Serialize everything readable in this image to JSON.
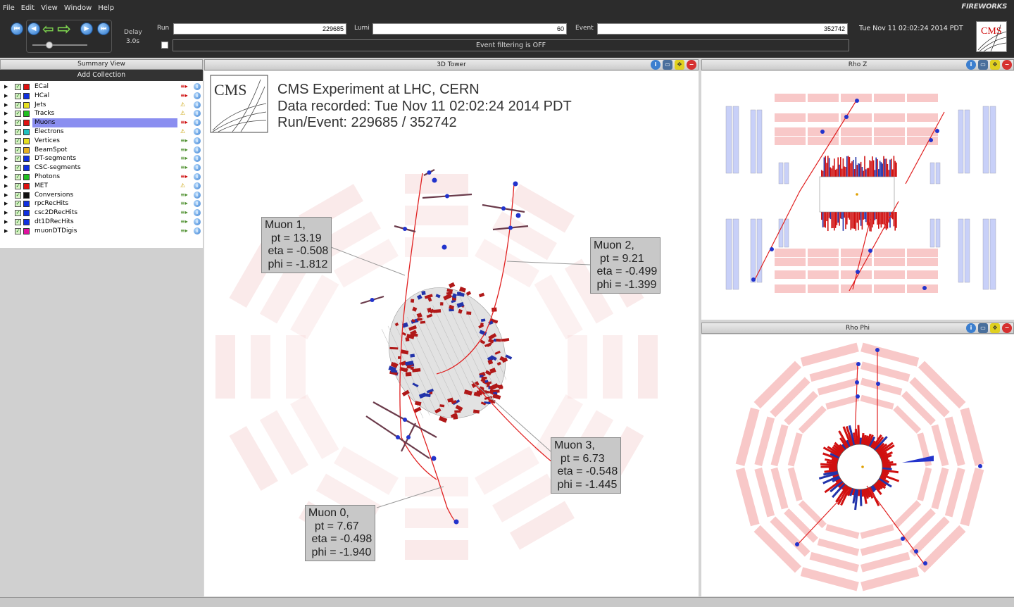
{
  "menu": {
    "file": "File",
    "edit": "Edit",
    "view": "View",
    "window": "Window",
    "help": "Help",
    "brand": "FIREWORKS"
  },
  "toolbar": {
    "delay_label": "Delay",
    "delay_value": "3.0s",
    "run_label": "Run",
    "run_value": "229685",
    "lumi_label": "Lumi",
    "lumi_value": "60",
    "event_label": "Event",
    "event_value": "352742",
    "timestamp": "Tue Nov 11 02:02:24 2014 PDT",
    "filter_status": "Event filtering is OFF",
    "logo_text": "CMS"
  },
  "summary": {
    "title": "Summary View",
    "add_collection": "Add Collection",
    "collections": [
      {
        "name": "ECal",
        "color": "#e01010",
        "status": "≡▸",
        "status_kind": "err"
      },
      {
        "name": "HCal",
        "color": "#1030e0",
        "status": "≡▸",
        "status_kind": "err"
      },
      {
        "name": "Jets",
        "color": "#e6e020",
        "status": "⚠",
        "status_kind": "warn"
      },
      {
        "name": "Tracks",
        "color": "#20c020",
        "status": "⚠",
        "status_kind": "warn"
      },
      {
        "name": "Muons",
        "color": "#e01010",
        "status": "≡▸",
        "status_kind": "err",
        "selected": true
      },
      {
        "name": "Electrons",
        "color": "#20c0c0",
        "status": "⚠",
        "status_kind": "warn"
      },
      {
        "name": "Vertices",
        "color": "#e6e020",
        "status": "≡▸",
        "status_kind": "ok"
      },
      {
        "name": "BeamSpot",
        "color": "#e6b020",
        "status": "≡▸",
        "status_kind": "ok"
      },
      {
        "name": "DT-segments",
        "color": "#1030e0",
        "status": "≡▸",
        "status_kind": "ok"
      },
      {
        "name": "CSC-segments",
        "color": "#1030e0",
        "status": "≡▸",
        "status_kind": "ok"
      },
      {
        "name": "Photons",
        "color": "#20c020",
        "status": "≡▸",
        "status_kind": "err"
      },
      {
        "name": "MET",
        "color": "#e01010",
        "status": "⚠",
        "status_kind": "warn"
      },
      {
        "name": "Conversions",
        "color": "#111111",
        "status": "≡▸",
        "status_kind": "ok"
      },
      {
        "name": "rpcRecHits",
        "color": "#1030e0",
        "status": "≡▸",
        "status_kind": "ok"
      },
      {
        "name": "csc2DRecHits",
        "color": "#1030e0",
        "status": "≡▸",
        "status_kind": "ok"
      },
      {
        "name": "dt1DRecHits",
        "color": "#1030e0",
        "status": "≡▸",
        "status_kind": "ok"
      },
      {
        "name": "muonDTDigis",
        "color": "#e010a0",
        "status": "≡▸",
        "status_kind": "ok"
      }
    ]
  },
  "views": {
    "tower": {
      "title": "3D Tower"
    },
    "rhoz": {
      "title": "Rho Z"
    },
    "rhophi": {
      "title": "Rho Phi"
    }
  },
  "event_header": {
    "logo": "CMS",
    "line1": "CMS Experiment at LHC, CERN",
    "line2": "Data recorded: Tue Nov 11 02:02:24 2014 PDT",
    "line3": "Run/Event: 229685 / 352742"
  },
  "muons": [
    {
      "name": "Muon 1,",
      "pt": "pt = 13.19",
      "eta": "eta = -0.508",
      "phi": "phi = -1.812"
    },
    {
      "name": "Muon 2,",
      "pt": "pt = 9.21",
      "eta": "eta = -0.499",
      "phi": "phi = -1.399"
    },
    {
      "name": "Muon 3,",
      "pt": "pt = 6.73",
      "eta": "eta = -0.548",
      "phi": "phi = -1.445"
    },
    {
      "name": "Muon 0,",
      "pt": "pt = 7.67",
      "eta": "eta = -0.498",
      "phi": "phi = -1.940"
    }
  ],
  "colors": {
    "muon_track": "#e02020",
    "chamber_pink": "#f8c8c8",
    "chamber_blue": "#c8d0f8",
    "selection": "#8a8ef0"
  }
}
